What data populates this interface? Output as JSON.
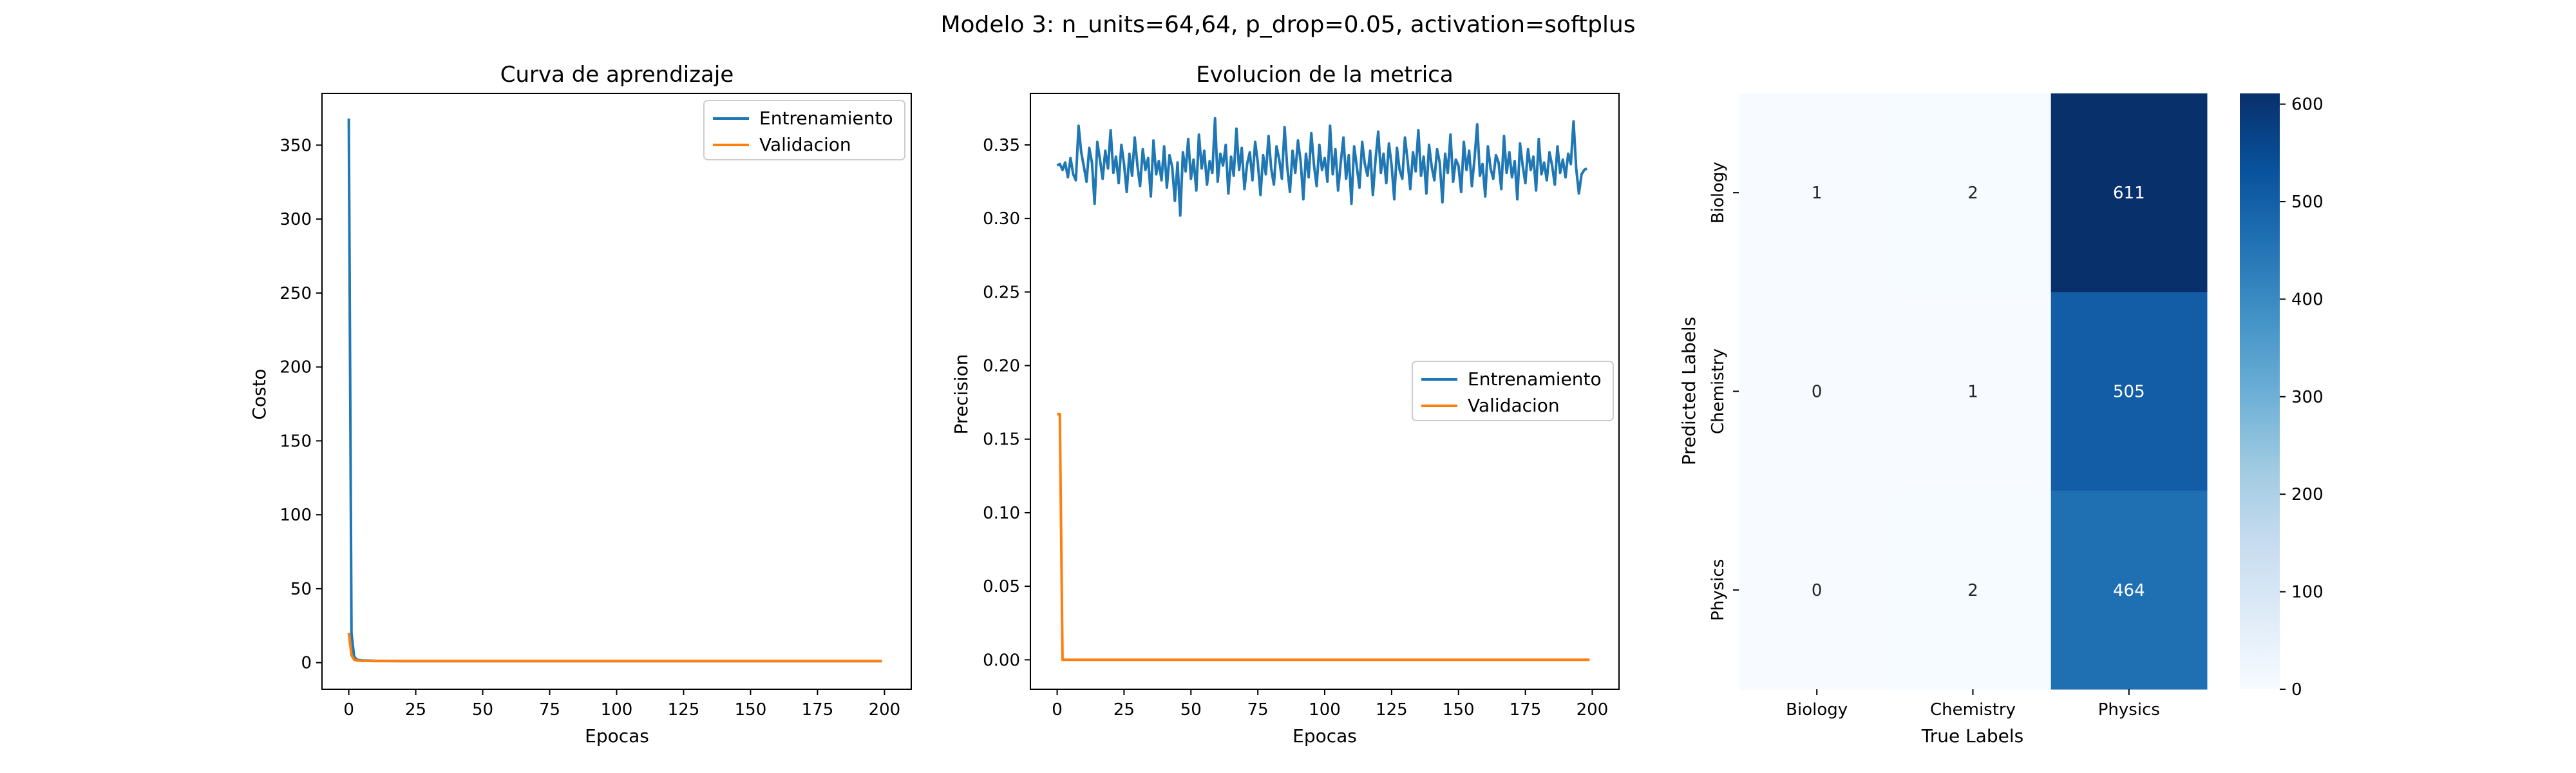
{
  "suptitle": "Modelo 3: n_units=64,64, p_drop=0.05, activation=softplus",
  "colors": {
    "train": "#1f77b4",
    "val": "#ff7f0e"
  },
  "chart_data": [
    {
      "type": "line",
      "title": "Curva de aprendizaje",
      "xlabel": "Epocas",
      "ylabel": "Costo",
      "xlim": [
        -10,
        210
      ],
      "ylim": [
        -18,
        385
      ],
      "xticks": [
        0,
        25,
        50,
        75,
        100,
        125,
        150,
        175,
        200
      ],
      "yticks": [
        0,
        50,
        100,
        150,
        200,
        250,
        300,
        350
      ],
      "legend": "top-right",
      "series": [
        {
          "name": "Entrenamiento",
          "x": [
            0,
            1,
            2,
            3,
            5,
            10,
            20,
            50,
            100,
            150,
            199
          ],
          "y": [
            368,
            20,
            4,
            2,
            1.5,
            1.2,
            1.1,
            1.1,
            1.1,
            1.1,
            1.1
          ]
        },
        {
          "name": "Validacion",
          "x": [
            0,
            1,
            2,
            3,
            5,
            10,
            20,
            50,
            100,
            150,
            199
          ],
          "y": [
            20,
            5,
            2,
            1.5,
            1.2,
            1.1,
            1.1,
            1.1,
            1.1,
            1.1,
            1.1
          ]
        }
      ]
    },
    {
      "type": "line",
      "title": "Evolucion de la metrica",
      "xlabel": "Epocas",
      "ylabel": "Precision",
      "xlim": [
        -10,
        210
      ],
      "ylim": [
        -0.02,
        0.385
      ],
      "xticks": [
        0,
        25,
        50,
        75,
        100,
        125,
        150,
        175,
        200
      ],
      "yticks": [
        0.0,
        0.05,
        0.1,
        0.15,
        0.2,
        0.25,
        0.3,
        0.35
      ],
      "legend": "center-right",
      "series": [
        {
          "name": "Entrenamiento",
          "x_start": 0,
          "x_step": 1,
          "y": [
            0.336,
            0.337,
            0.333,
            0.338,
            0.328,
            0.341,
            0.33,
            0.326,
            0.363,
            0.345,
            0.335,
            0.325,
            0.348,
            0.338,
            0.31,
            0.352,
            0.34,
            0.327,
            0.346,
            0.334,
            0.36,
            0.331,
            0.342,
            0.324,
            0.35,
            0.337,
            0.318,
            0.344,
            0.329,
            0.355,
            0.336,
            0.322,
            0.347,
            0.333,
            0.341,
            0.315,
            0.353,
            0.33,
            0.339,
            0.326,
            0.349,
            0.321,
            0.343,
            0.335,
            0.312,
            0.338,
            0.302,
            0.345,
            0.332,
            0.354,
            0.327,
            0.34,
            0.319,
            0.357,
            0.334,
            0.346,
            0.323,
            0.339,
            0.331,
            0.368,
            0.325,
            0.344,
            0.336,
            0.35,
            0.317,
            0.342,
            0.329,
            0.361,
            0.333,
            0.348,
            0.32,
            0.337,
            0.345,
            0.326,
            0.352,
            0.338,
            0.316,
            0.343,
            0.33,
            0.356,
            0.334,
            0.323,
            0.349,
            0.34,
            0.327,
            0.362,
            0.335,
            0.318,
            0.346,
            0.331,
            0.353,
            0.339,
            0.313,
            0.344,
            0.328,
            0.358,
            0.336,
            0.322,
            0.35,
            0.333,
            0.341,
            0.325,
            0.363,
            0.33,
            0.347,
            0.319,
            0.338,
            0.355,
            0.327,
            0.343,
            0.31,
            0.349,
            0.335,
            0.321,
            0.352,
            0.337,
            0.329,
            0.346,
            0.316,
            0.34,
            0.359,
            0.331,
            0.344,
            0.324,
            0.351,
            0.336,
            0.313,
            0.348,
            0.333,
            0.327,
            0.355,
            0.339,
            0.32,
            0.345,
            0.332,
            0.36,
            0.329,
            0.342,
            0.317,
            0.35,
            0.335,
            0.326,
            0.347,
            0.338,
            0.311,
            0.344,
            0.331,
            0.357,
            0.325,
            0.34,
            0.336,
            0.318,
            0.352,
            0.333,
            0.346,
            0.322,
            0.341,
            0.364,
            0.329,
            0.337,
            0.315,
            0.349,
            0.334,
            0.327,
            0.343,
            0.338,
            0.32,
            0.356,
            0.331,
            0.345,
            0.328,
            0.339,
            0.313,
            0.351,
            0.336,
            0.324,
            0.347,
            0.333,
            0.342,
            0.319,
            0.354,
            0.33,
            0.338,
            0.326,
            0.345,
            0.336,
            0.323,
            0.349,
            0.331,
            0.34,
            0.328,
            0.344,
            0.337,
            0.366,
            0.334,
            0.317,
            0.33,
            0.333,
            0.334
          ]
        },
        {
          "name": "Validacion",
          "x": [
            0,
            1,
            2,
            3,
            10,
            50,
            100,
            150,
            199
          ],
          "y": [
            0.167,
            0.167,
            0.0,
            0.0,
            0.0,
            0.0,
            0.0,
            0.0,
            0.0
          ]
        }
      ]
    },
    {
      "type": "heatmap",
      "xlabel": "True Labels",
      "ylabel": "Predicted Labels",
      "x_categories": [
        "Biology",
        "Chemistry",
        "Physics"
      ],
      "y_categories": [
        "Biology",
        "Chemistry",
        "Physics"
      ],
      "values": [
        [
          1,
          2,
          611
        ],
        [
          0,
          1,
          505
        ],
        [
          0,
          2,
          464
        ]
      ],
      "colorbar": {
        "min": 0,
        "max": 611,
        "ticks": [
          0,
          100,
          200,
          300,
          400,
          500,
          600
        ]
      },
      "colormap": "Blues"
    }
  ]
}
